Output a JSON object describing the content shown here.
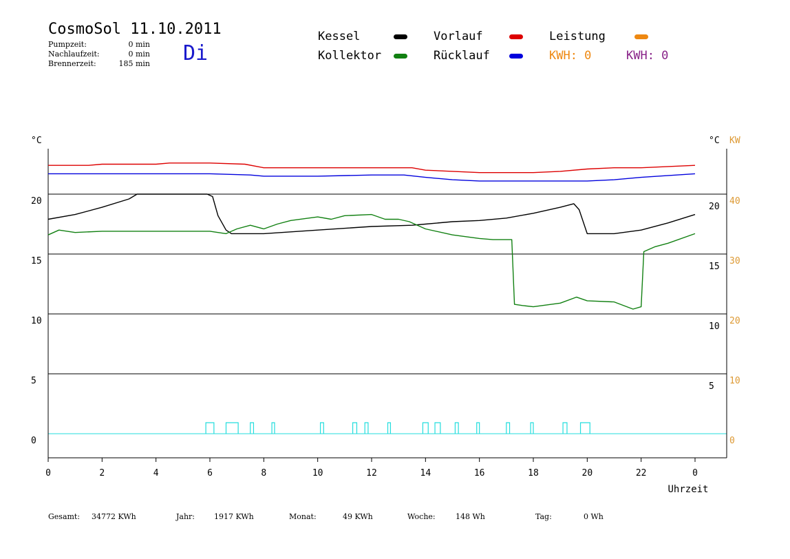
{
  "header": {
    "title": "CosmoSol 11.10.2011",
    "day": "Di",
    "info": [
      {
        "label": "Pumpzeit:",
        "value": "0 min"
      },
      {
        "label": "Nachlaufzeit:",
        "value": "0 min"
      },
      {
        "label": "Brennerzeit:",
        "value": "185 min"
      }
    ]
  },
  "legend": {
    "kessel": "Kessel",
    "kollektor": "Kollektor",
    "vorlauf": "Vorlauf",
    "ruecklauf": "Rücklauf",
    "leistung": "Leistung",
    "kwh1": "KWH: 0",
    "kwh2": "KWH: 0"
  },
  "footer": {
    "gesamt_label": "Gesamt:",
    "gesamt_value": "34772 KWh",
    "jahr_label": "Jahr:",
    "jahr_value": "1917 KWh",
    "monat_label": "Monat:",
    "monat_value": "49 KWh",
    "woche_label": "Woche:",
    "woche_value": "148 Wh",
    "tag_label": "Tag:",
    "tag_value": "0 Wh"
  },
  "colors": {
    "kessel": "#000000",
    "kollektor": "#118011",
    "vorlauf": "#dd0000",
    "ruecklauf": "#0000dd",
    "leistung": "#ee8811",
    "kwh2": "#882288",
    "pump": "#22dddd",
    "orange_axis": "#dd9933",
    "day": "#1a1acc"
  },
  "chart_data": {
    "type": "line",
    "xlabel": "Uhrzeit",
    "x_ticks": [
      "0",
      "2",
      "4",
      "6",
      "8",
      "10",
      "12",
      "14",
      "16",
      "18",
      "20",
      "22",
      "0"
    ],
    "xlim": [
      0,
      24
    ],
    "left_axis": {
      "unit": "°C",
      "ticks": [
        "20",
        "15",
        "10",
        "5",
        "0"
      ],
      "ylim": [
        0,
        20
      ]
    },
    "right_axis_temp": {
      "unit": "°C",
      "ticks": [
        "20",
        "15",
        "10",
        "5"
      ]
    },
    "right_axis_power": {
      "unit": "KW",
      "ticks": [
        "40",
        "30",
        "20",
        "10",
        "0"
      ],
      "ylim": [
        0,
        40
      ]
    },
    "grid": true,
    "series": [
      {
        "name": "Kessel",
        "color": "#000000",
        "x": [
          0,
          1,
          2,
          3,
          3.3,
          4.5,
          5.5,
          5.9,
          6.1,
          6.3,
          6.6,
          6.8,
          7.2,
          8,
          10,
          12,
          13.5,
          14,
          15,
          16,
          17,
          18,
          19,
          19.5,
          19.7,
          20,
          21,
          22,
          23,
          24
        ],
        "y": [
          17.9,
          18.3,
          18.9,
          19.6,
          20,
          20,
          20,
          20,
          19.8,
          18.2,
          17,
          16.7,
          16.7,
          16.7,
          17,
          17.3,
          17.4,
          17.5,
          17.7,
          17.8,
          18,
          18.4,
          18.9,
          19.2,
          18.7,
          16.7,
          16.7,
          17,
          17.6,
          18.3
        ]
      },
      {
        "name": "Kollektor",
        "color": "#118011",
        "x": [
          0,
          0.4,
          1,
          2,
          4,
          6,
          6.6,
          7,
          7.5,
          8,
          8.5,
          9,
          10,
          10.5,
          11,
          12,
          12.5,
          13,
          13.4,
          14,
          15,
          16,
          16.5,
          17.2,
          17.3,
          17.6,
          18,
          19,
          19.6,
          20,
          21,
          21.7,
          22,
          22.1,
          22.5,
          23,
          24
        ],
        "y": [
          16.6,
          17,
          16.8,
          16.9,
          16.9,
          16.9,
          16.7,
          17.1,
          17.4,
          17.1,
          17.5,
          17.8,
          18.1,
          17.9,
          18.2,
          18.3,
          17.9,
          17.9,
          17.7,
          17.1,
          16.6,
          16.3,
          16.2,
          16.2,
          10.8,
          10.7,
          10.6,
          10.9,
          11.4,
          11.1,
          11.0,
          10.4,
          10.6,
          15.2,
          15.6,
          15.9,
          16.7
        ]
      },
      {
        "name": "Vorlauf",
        "color": "#dd0000",
        "x": [
          0,
          1.5,
          2,
          4,
          4.5,
          6,
          7.3,
          8,
          10,
          12,
          13.5,
          14,
          15,
          16,
          18,
          19,
          20,
          21,
          22,
          24
        ],
        "y": [
          22.4,
          22.4,
          22.5,
          22.5,
          22.6,
          22.6,
          22.5,
          22.2,
          22.2,
          22.2,
          22.2,
          22.0,
          21.9,
          21.8,
          21.8,
          21.9,
          22.1,
          22.2,
          22.2,
          22.4
        ]
      },
      {
        "name": "Rücklauf",
        "color": "#0000dd",
        "x": [
          0,
          2,
          4,
          6,
          7.5,
          8,
          10,
          12,
          13.2,
          14,
          15,
          16,
          18,
          20,
          21,
          22,
          24
        ],
        "y": [
          21.7,
          21.7,
          21.7,
          21.7,
          21.6,
          21.5,
          21.5,
          21.6,
          21.6,
          21.4,
          21.2,
          21.1,
          21.1,
          21.1,
          21.2,
          21.4,
          21.7
        ]
      }
    ],
    "pump_pulses": [
      {
        "x": 5.85,
        "w": 0.3
      },
      {
        "x": 6.6,
        "w": 0.45
      },
      {
        "x": 7.5,
        "w": 0.12
      },
      {
        "x": 8.3,
        "w": 0.1
      },
      {
        "x": 10.1,
        "w": 0.12
      },
      {
        "x": 11.3,
        "w": 0.15
      },
      {
        "x": 11.75,
        "w": 0.12
      },
      {
        "x": 12.6,
        "w": 0.1
      },
      {
        "x": 13.9,
        "w": 0.2
      },
      {
        "x": 14.35,
        "w": 0.2
      },
      {
        "x": 15.1,
        "w": 0.12
      },
      {
        "x": 15.9,
        "w": 0.1
      },
      {
        "x": 17.0,
        "w": 0.12
      },
      {
        "x": 17.9,
        "w": 0.1
      },
      {
        "x": 19.1,
        "w": 0.15
      },
      {
        "x": 19.75,
        "w": 0.35
      }
    ]
  }
}
